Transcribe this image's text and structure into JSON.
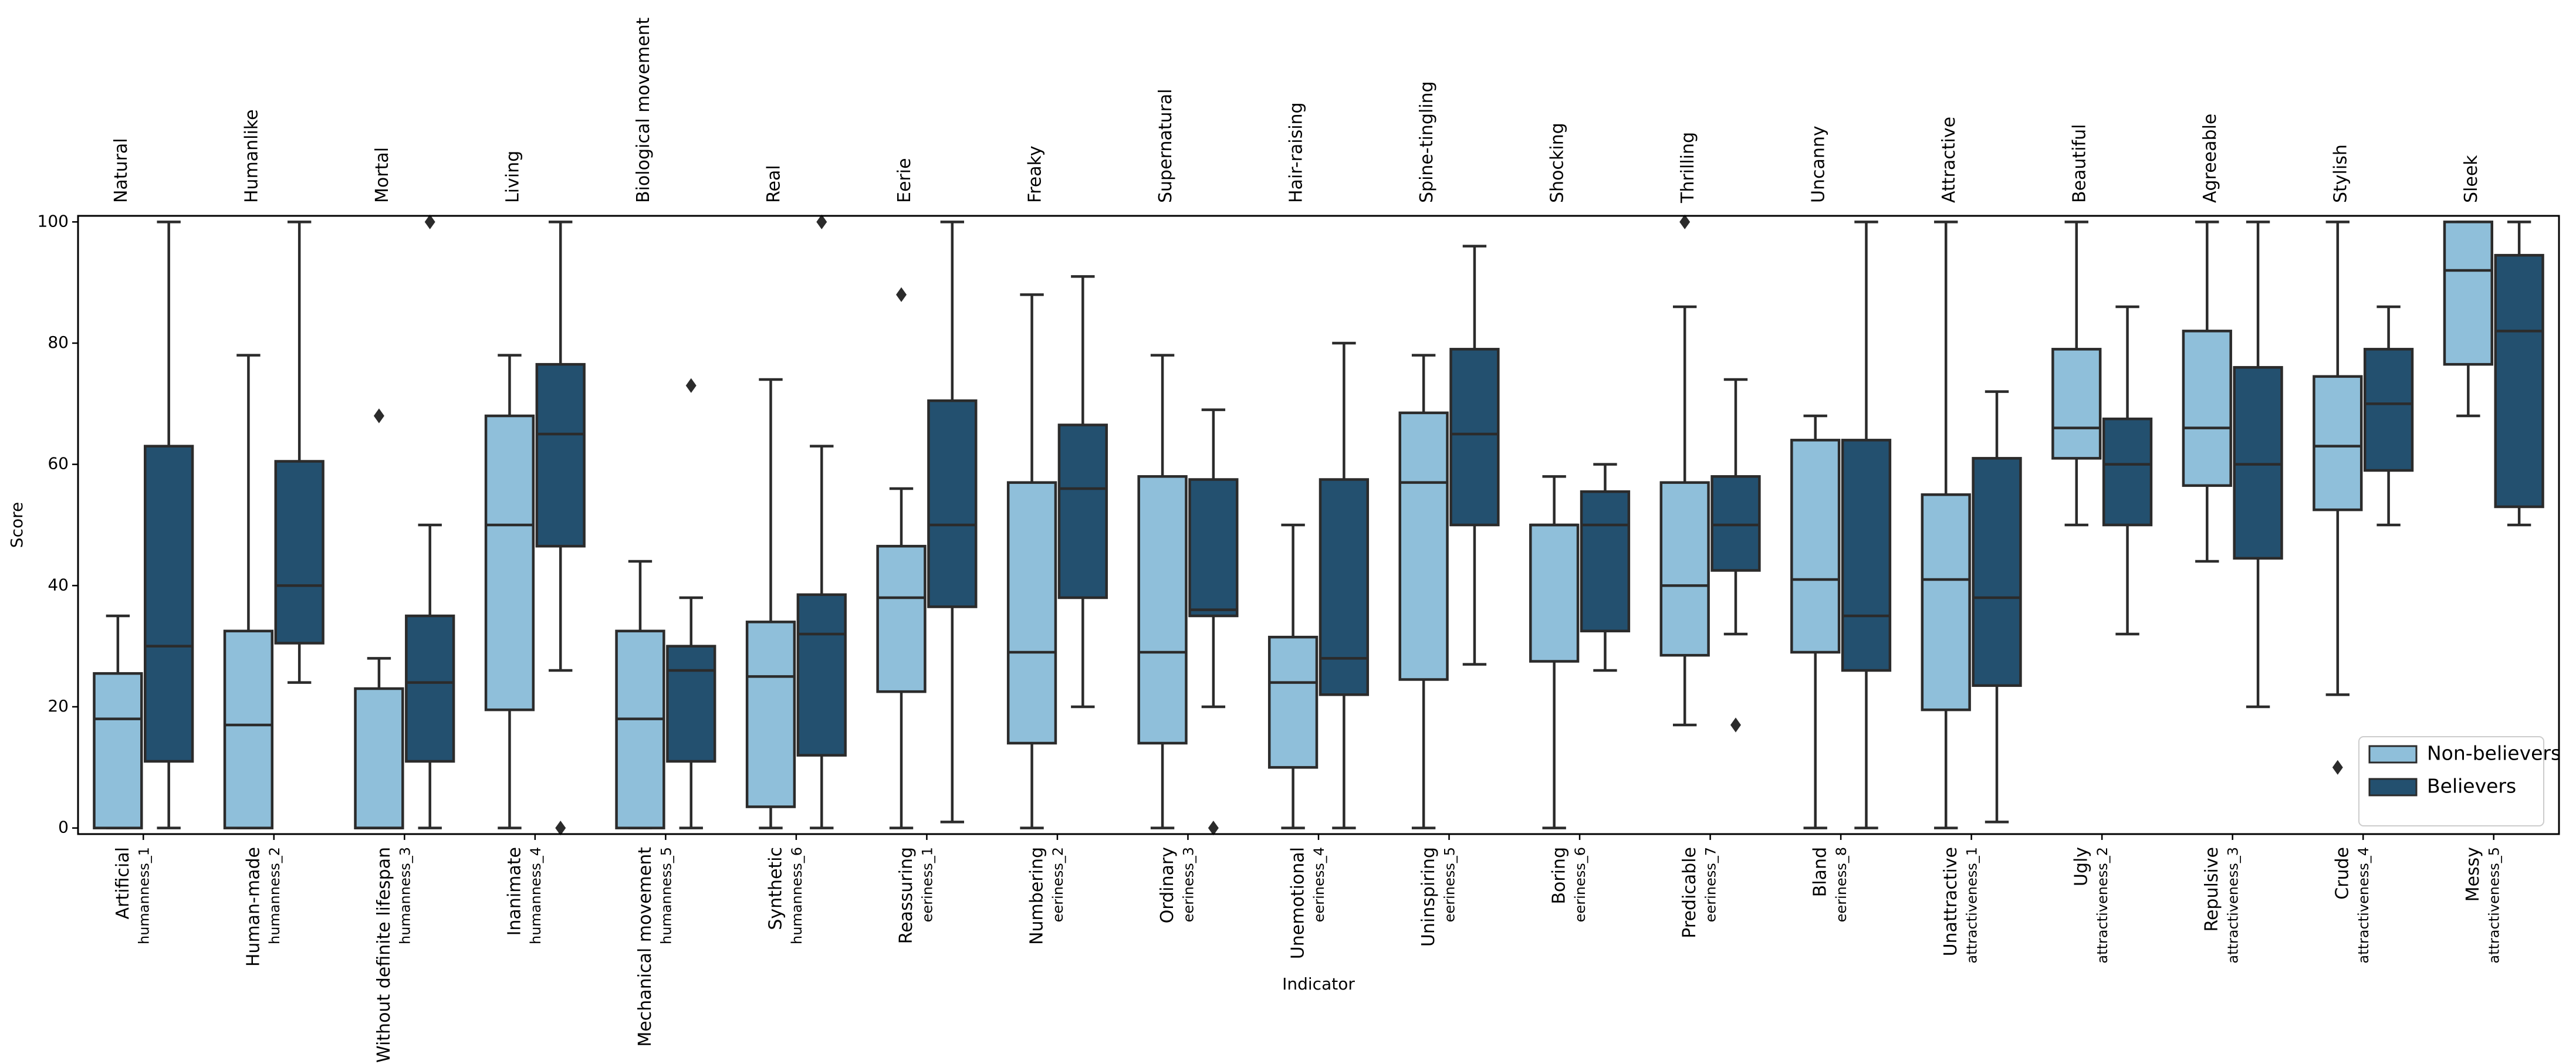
{
  "chart_data": {
    "type": "box",
    "xlabel": "Indicator",
    "ylabel": "Score",
    "categories": [
      "Artificial",
      "Human-made",
      "Without definite lifespan",
      "Inanimate",
      "Mechanical movement",
      "Synthetic",
      "Reassuring",
      "Numbering",
      "Ordinary",
      "Unemotional",
      "Uninspiring",
      "Boring",
      "Predicable",
      "Bland",
      "Unattractive",
      "Ugly",
      "Repulsive",
      "Crude",
      "Messy"
    ],
    "sublabels": [
      "humanness_1",
      "humanness_2",
      "humanness_3",
      "humanness_4",
      "humanness_5",
      "humanness_6",
      "eeriness_1",
      "eeriness_2",
      "eeriness_3",
      "eeriness_4",
      "eeriness_5",
      "eeriness_6",
      "eeriness_7",
      "eeriness_8",
      "attractiveness_1",
      "attractiveness_2",
      "attractiveness_3",
      "attractiveness_4",
      "attractiveness_5"
    ],
    "top_labels": [
      "Natural",
      "Humanlike",
      "Mortal",
      "Living",
      "Biological movement",
      "Real",
      "Eerie",
      "Freaky",
      "Supernatural",
      "Hair-raising",
      "Spine-tingling",
      "Shocking",
      "Thrilling",
      "Uncanny",
      "Attractive",
      "Beautiful",
      "Agreeable",
      "Stylish",
      "Sleek"
    ],
    "ylim": [
      -1,
      101
    ],
    "yticks": [
      0,
      20,
      40,
      60,
      80,
      100
    ],
    "legend": "lower right",
    "series": [
      {
        "name": "Non-believers",
        "color": "#8fbfda",
        "boxes": [
          {
            "whislo": 0,
            "q1": 0,
            "med": 18,
            "q3": 25.5,
            "whishi": 35
          },
          {
            "whislo": 0,
            "q1": 0,
            "med": 17,
            "q3": 32.5,
            "whishi": 78
          },
          {
            "whislo": 0,
            "q1": 0,
            "med": 0,
            "q3": 23,
            "whishi": 28,
            "fliers": [
              68
            ]
          },
          {
            "whislo": 0,
            "q1": 19.5,
            "med": 50,
            "q3": 68,
            "whishi": 78
          },
          {
            "whislo": 0,
            "q1": 0,
            "med": 18,
            "q3": 32.5,
            "whishi": 44
          },
          {
            "whislo": 0,
            "q1": 3.5,
            "med": 25,
            "q3": 34,
            "whishi": 74
          },
          {
            "whislo": 0,
            "q1": 22.5,
            "med": 38,
            "q3": 46.5,
            "whishi": 56,
            "fliers": [
              88
            ]
          },
          {
            "whislo": 0,
            "q1": 14,
            "med": 29,
            "q3": 57,
            "whishi": 88
          },
          {
            "whislo": 0,
            "q1": 14,
            "med": 29,
            "q3": 58,
            "whishi": 78
          },
          {
            "whislo": 0,
            "q1": 10,
            "med": 24,
            "q3": 31.5,
            "whishi": 50
          },
          {
            "whislo": 0,
            "q1": 24.5,
            "med": 57,
            "q3": 68.5,
            "whishi": 78
          },
          {
            "whislo": 0,
            "q1": 27.5,
            "med": 50,
            "q3": 50,
            "whishi": 58
          },
          {
            "whislo": 17,
            "q1": 28.5,
            "med": 40,
            "q3": 57,
            "whishi": 86,
            "fliers": [
              100
            ]
          },
          {
            "whislo": 0,
            "q1": 29,
            "med": 41,
            "q3": 64,
            "whishi": 68
          },
          {
            "whislo": 0,
            "q1": 19.5,
            "med": 41,
            "q3": 55,
            "whishi": 100
          },
          {
            "whislo": 50,
            "q1": 61,
            "med": 66,
            "q3": 79,
            "whishi": 100
          },
          {
            "whislo": 44,
            "q1": 56.5,
            "med": 66,
            "q3": 82,
            "whishi": 100
          },
          {
            "whislo": 22,
            "q1": 52.5,
            "med": 63,
            "q3": 74.5,
            "whishi": 100,
            "fliers": [
              10
            ]
          },
          {
            "whislo": 68,
            "q1": 76.5,
            "med": 92,
            "q3": 100,
            "whishi": 100
          }
        ]
      },
      {
        "name": "Believers",
        "color": "#23506f",
        "boxes": [
          {
            "whislo": 0,
            "q1": 11,
            "med": 30,
            "q3": 63,
            "whishi": 100
          },
          {
            "whislo": 24,
            "q1": 30.5,
            "med": 40,
            "q3": 60.5,
            "whishi": 100
          },
          {
            "whislo": 0,
            "q1": 11,
            "med": 24,
            "q3": 35,
            "whishi": 50,
            "fliers": [
              100
            ]
          },
          {
            "whislo": 26,
            "q1": 46.5,
            "med": 65,
            "q3": 76.5,
            "whishi": 100,
            "fliers": [
              0
            ]
          },
          {
            "whislo": 0,
            "q1": 11,
            "med": 26,
            "q3": 30,
            "whishi": 38,
            "fliers": [
              73
            ]
          },
          {
            "whislo": 0,
            "q1": 12,
            "med": 32,
            "q3": 38.5,
            "whishi": 63,
            "fliers": [
              100
            ]
          },
          {
            "whislo": 1,
            "q1": 36.5,
            "med": 50,
            "q3": 70.5,
            "whishi": 100
          },
          {
            "whislo": 20,
            "q1": 38,
            "med": 56,
            "q3": 66.5,
            "whishi": 91
          },
          {
            "whislo": 20,
            "q1": 35,
            "med": 36,
            "q3": 57.5,
            "whishi": 69,
            "fliers": [
              0
            ]
          },
          {
            "whislo": 0,
            "q1": 22,
            "med": 28,
            "q3": 57.5,
            "whishi": 80
          },
          {
            "whislo": 27,
            "q1": 50,
            "med": 65,
            "q3": 79,
            "whishi": 96
          },
          {
            "whislo": 26,
            "q1": 32.5,
            "med": 50,
            "q3": 55.5,
            "whishi": 60
          },
          {
            "whislo": 32,
            "q1": 42.5,
            "med": 50,
            "q3": 58,
            "whishi": 74,
            "fliers": [
              17
            ]
          },
          {
            "whislo": 0,
            "q1": 26,
            "med": 35,
            "q3": 64,
            "whishi": 100
          },
          {
            "whislo": 1,
            "q1": 23.5,
            "med": 38,
            "q3": 61,
            "whishi": 72
          },
          {
            "whislo": 32,
            "q1": 50,
            "med": 60,
            "q3": 67.5,
            "whishi": 86
          },
          {
            "whislo": 20,
            "q1": 44.5,
            "med": 60,
            "q3": 76,
            "whishi": 100
          },
          {
            "whislo": 50,
            "q1": 59,
            "med": 70,
            "q3": 79,
            "whishi": 86
          },
          {
            "whislo": 50,
            "q1": 53,
            "med": 82,
            "q3": 94.5,
            "whishi": 100
          }
        ]
      }
    ]
  }
}
